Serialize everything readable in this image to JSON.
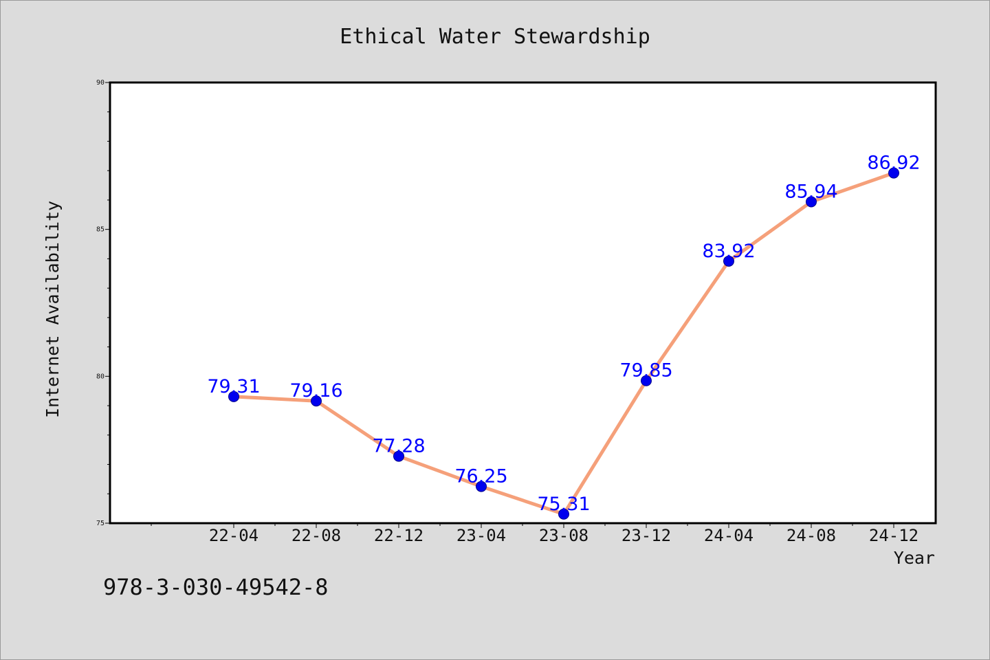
{
  "chart_data": {
    "type": "line",
    "title": "Ethical Water Stewardship",
    "xlabel": "Year",
    "ylabel": "Internet Availability",
    "categories": [
      "22-04",
      "22-08",
      "22-12",
      "23-04",
      "23-08",
      "23-12",
      "24-04",
      "24-08",
      "24-12"
    ],
    "values": [
      79.31,
      79.16,
      77.28,
      76.25,
      75.31,
      79.85,
      83.92,
      85.94,
      86.92
    ],
    "data_labels": [
      "79.31",
      "79.16",
      "77.28",
      "76.25",
      "75.31",
      "79.85",
      "83.92",
      "85.94",
      "86.92"
    ],
    "ylim": [
      75,
      90
    ],
    "yticks": [
      75,
      80,
      85,
      90
    ],
    "ytick_labels": [
      "75",
      "80",
      "85",
      "90"
    ],
    "grid": false,
    "legend": "none",
    "line_color": "#f5a07a",
    "marker_color": "#0000ee",
    "label_color": "#0000ff"
  },
  "footer_text": "978-3-030-49542-8"
}
